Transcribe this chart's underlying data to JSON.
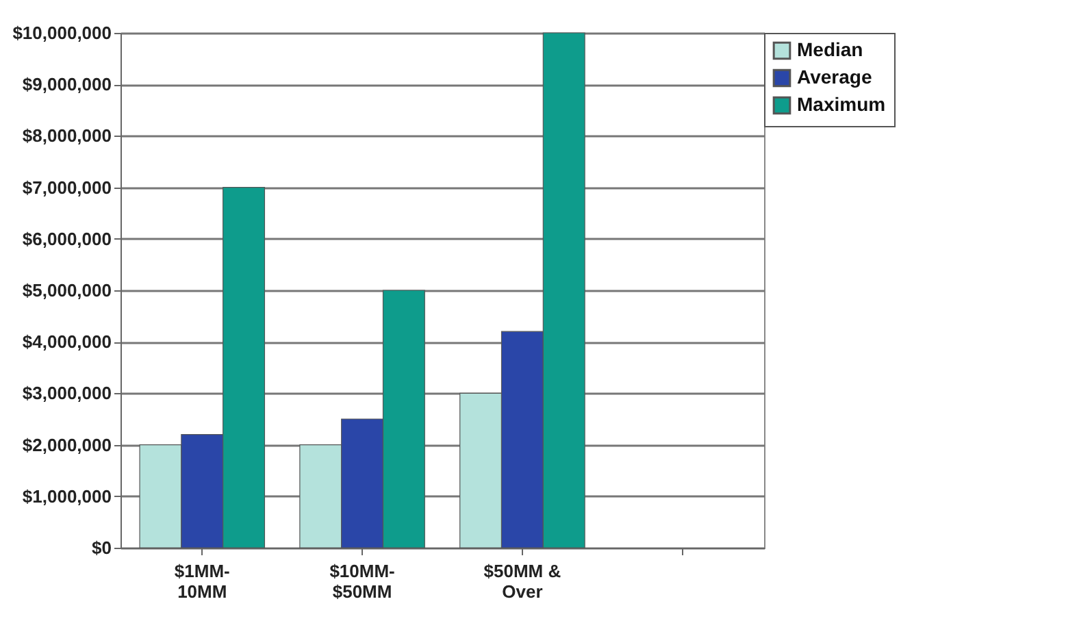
{
  "chart_data": {
    "type": "bar",
    "categories": [
      "$1MM-10MM",
      "$10MM-$50MM",
      "$50MM & Over",
      null
    ],
    "series": [
      {
        "name": "Median",
        "color": "#b4e2dc",
        "values": [
          2000000,
          2000000,
          3000000,
          null
        ]
      },
      {
        "name": "Average",
        "color": "#2a46a8",
        "values": [
          2200000,
          2500000,
          4200000,
          null
        ]
      },
      {
        "name": "Maximum",
        "color": "#0e9c8c",
        "values": [
          7000000,
          5000000,
          10000000,
          null
        ]
      }
    ],
    "ylim": [
      0,
      10000000
    ],
    "yticks": [
      {
        "value": 0,
        "label": "$0"
      },
      {
        "value": 1000000,
        "label": "$1,000,000"
      },
      {
        "value": 2000000,
        "label": "$2,000,000"
      },
      {
        "value": 3000000,
        "label": "$3,000,000"
      },
      {
        "value": 4000000,
        "label": "$4,000,000"
      },
      {
        "value": 5000000,
        "label": "$5,000,000"
      },
      {
        "value": 6000000,
        "label": "$6,000,000"
      },
      {
        "value": 7000000,
        "label": "$7,000,000"
      },
      {
        "value": 8000000,
        "label": "$8,000,000"
      },
      {
        "value": 9000000,
        "label": "$9,000,000"
      },
      {
        "value": 10000000,
        "label": "$10,000,000"
      }
    ],
    "grid": "y",
    "legend": "right"
  }
}
